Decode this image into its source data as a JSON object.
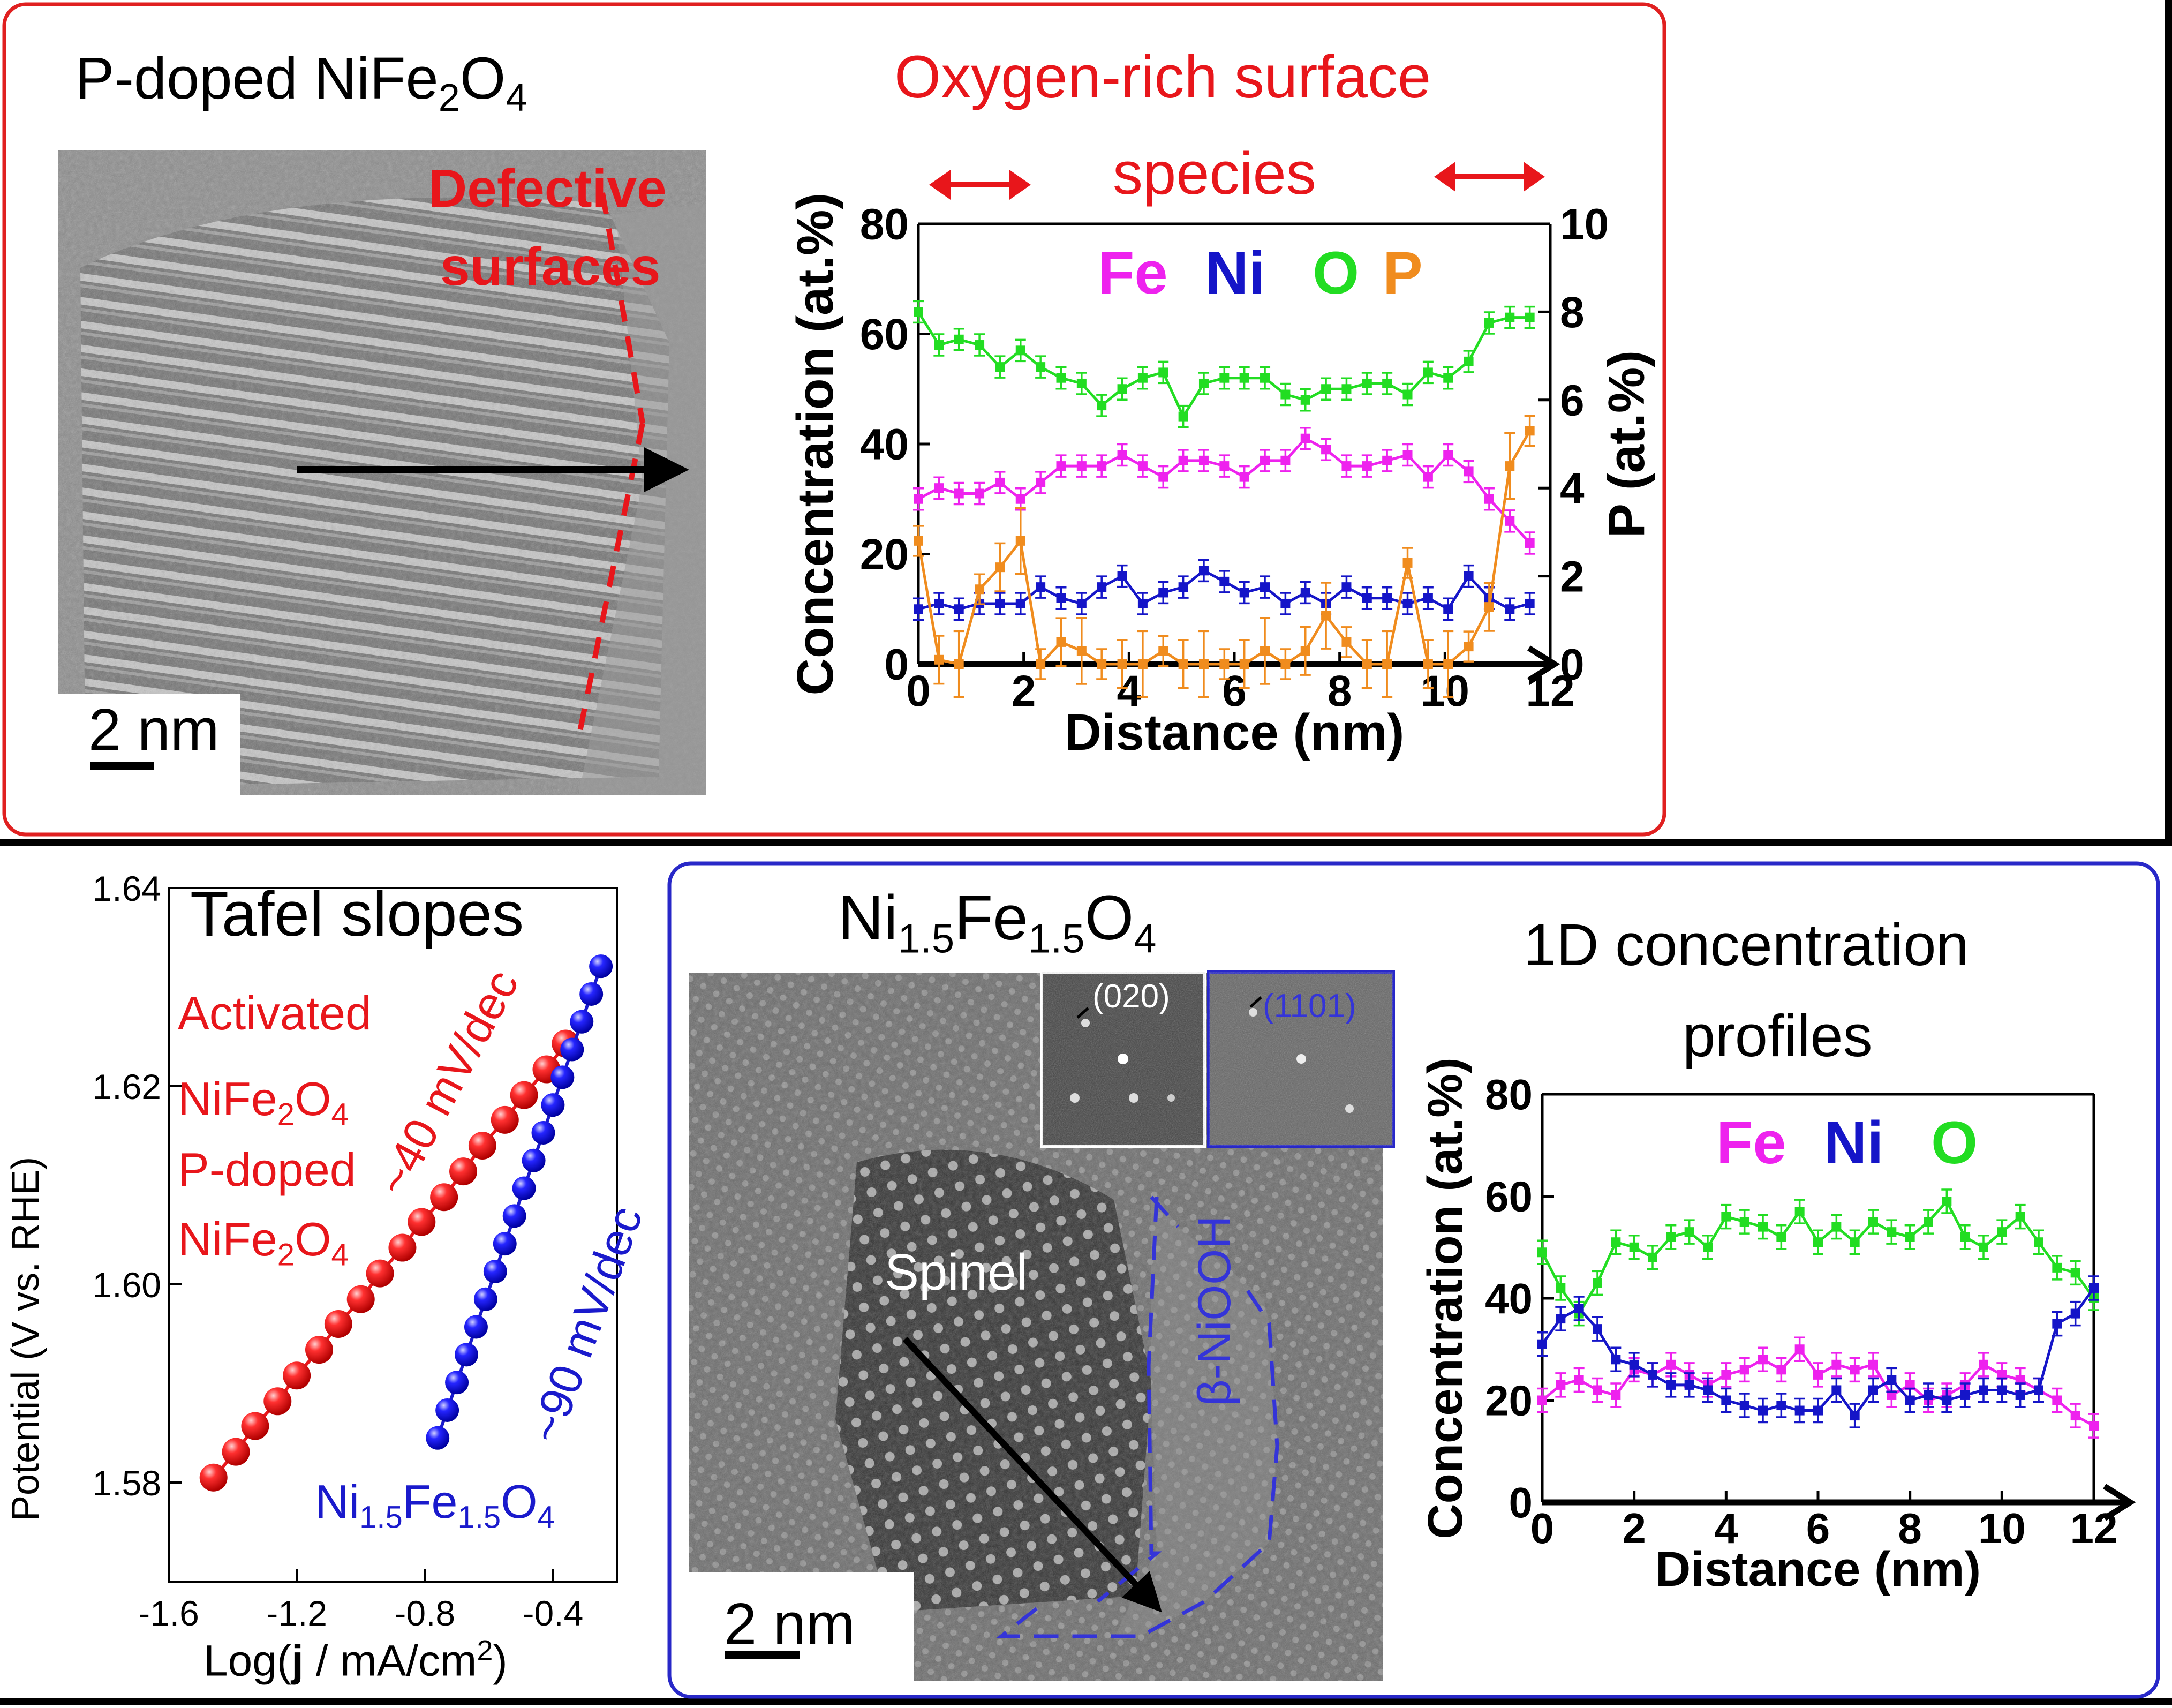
{
  "top_panel": {
    "title": "P-doped NiFe2O4",
    "defect_label": [
      "Defective",
      "surfaces"
    ],
    "scale_bar": "2 nm",
    "annotation": [
      "Oxygen-rich surface",
      "species"
    ]
  },
  "bottom_panel": {
    "tafel_title": "Tafel slopes",
    "tem_title": "Ni1.5Fe1.5O4",
    "profile_title": [
      "1D concentration",
      "profiles"
    ],
    "spinel_label": "Spinel",
    "niooh_label": "β-NiOOH",
    "fft_labels": [
      "(020)",
      "(1101)"
    ],
    "scale_bar": "2 nm"
  },
  "colors": {
    "red": "#e8161b",
    "blue": "#1a1acc",
    "Fe": "#ee22ee",
    "Ni": "#1515c8",
    "O": "#22dd22",
    "P": "#f08c1e",
    "panel_border_red": "#e02020",
    "panel_border_blue": "#2828c8"
  },
  "chart_data": [
    {
      "type": "line",
      "xlabel": "Distance (nm)",
      "ylabel": "Concentration (at.%)",
      "y2label": "P (at.%)",
      "xlim": [
        0,
        12
      ],
      "ylim": [
        0,
        80
      ],
      "y2lim": [
        0,
        10
      ],
      "xticks": [
        "0",
        "2",
        "4",
        "6",
        "8",
        "10",
        "12"
      ],
      "yticks": [
        "0",
        "20",
        "40",
        "60",
        "80"
      ],
      "y2ticks": [
        "0",
        "2",
        "4",
        "6",
        "8",
        "10"
      ],
      "legend": [
        "Fe",
        "Ni",
        "O",
        "P"
      ],
      "x": [
        0,
        0.39,
        0.77,
        1.16,
        1.55,
        1.94,
        2.32,
        2.71,
        3.1,
        3.48,
        3.87,
        4.26,
        4.65,
        5.03,
        5.42,
        5.81,
        6.19,
        6.58,
        6.97,
        7.35,
        7.74,
        8.13,
        8.52,
        8.9,
        9.29,
        9.68,
        10.06,
        10.45,
        10.84,
        11.23,
        11.61
      ],
      "series": [
        {
          "name": "O",
          "axis": "left",
          "values": [
            64,
            58,
            59,
            58,
            54,
            57,
            54,
            52,
            51,
            47,
            50,
            52,
            53,
            45,
            51,
            52,
            52,
            52,
            49,
            48,
            50,
            50,
            51,
            51,
            49,
            53,
            52,
            55,
            62,
            63,
            63
          ]
        },
        {
          "name": "Fe",
          "axis": "left",
          "values": [
            30,
            32,
            31,
            31,
            33,
            30,
            33,
            36,
            36,
            36,
            38,
            36,
            34,
            37,
            37,
            36,
            34,
            37,
            37,
            41,
            39,
            36,
            36,
            37,
            38,
            34,
            38,
            35,
            30,
            26,
            22
          ]
        },
        {
          "name": "Ni",
          "axis": "left",
          "values": [
            10,
            11,
            10,
            11,
            11,
            11,
            14,
            12,
            11,
            14,
            16,
            11,
            13,
            14,
            17,
            15,
            13,
            14,
            11,
            13,
            11,
            14,
            12,
            12,
            11,
            12,
            10,
            16,
            12,
            10,
            11
          ]
        },
        {
          "name": "P",
          "axis": "right",
          "values": [
            2.8,
            0.1,
            0,
            1.7,
            2.2,
            2.8,
            0,
            0.5,
            0.3,
            0,
            0,
            0,
            0.3,
            0,
            0,
            0,
            0,
            0.3,
            0,
            0.3,
            1.1,
            0.5,
            0,
            0,
            2.3,
            0,
            0,
            0.4,
            1.3,
            4.5,
            5.3
          ]
        }
      ]
    },
    {
      "type": "scatter",
      "xlabel": "Log(j / mA/cm2)",
      "ylabel": "Potential (V vs. RHE)",
      "xlim": [
        -1.6,
        -0.2
      ],
      "ylim": [
        1.57,
        1.64
      ],
      "xticks": [
        "-1.6",
        "-1.2",
        "-0.8",
        "-0.4"
      ],
      "yticks": [
        "1.58",
        "1.60",
        "1.62",
        "1.64"
      ],
      "series": [
        {
          "name": "Activated P-doped NiFe2O4",
          "slope_label": "~40 mV/dec",
          "x": [
            -1.46,
            -1.39,
            -1.33,
            -1.26,
            -1.2,
            -1.13,
            -1.07,
            -1.0,
            -0.94,
            -0.87,
            -0.81,
            -0.74,
            -0.68,
            -0.62,
            -0.55,
            -0.49,
            -0.42,
            -0.36
          ],
          "y": [
            1.5805,
            1.5831,
            1.5857,
            1.5882,
            1.5908,
            1.5934,
            1.596,
            1.5985,
            1.6011,
            1.6037,
            1.6063,
            1.6088,
            1.6114,
            1.614,
            1.6166,
            1.6191,
            1.6217,
            1.6243
          ]
        },
        {
          "name": "Ni1.5Fe1.5O4",
          "slope_label": "~90 mV/dec",
          "x": [
            -0.76,
            -0.73,
            -0.7,
            -0.67,
            -0.64,
            -0.61,
            -0.58,
            -0.55,
            -0.52,
            -0.49,
            -0.46,
            -0.43,
            -0.4,
            -0.37,
            -0.34,
            -0.31,
            -0.28,
            -0.25
          ],
          "y": [
            1.5845,
            1.5873,
            1.5901,
            1.5929,
            1.5957,
            1.5985,
            1.6013,
            1.6041,
            1.6069,
            1.6097,
            1.6125,
            1.6153,
            1.6181,
            1.6209,
            1.6237,
            1.6265,
            1.6293,
            1.6321
          ]
        }
      ]
    },
    {
      "type": "line",
      "xlabel": "Distance (nm)",
      "ylabel": "Concentration (at.%)",
      "xlim": [
        0,
        12
      ],
      "ylim": [
        0,
        80
      ],
      "xticks": [
        "0",
        "2",
        "4",
        "6",
        "8",
        "10",
        "12"
      ],
      "yticks": [
        "0",
        "20",
        "40",
        "60",
        "80"
      ],
      "legend": [
        "Fe",
        "Ni",
        "O"
      ],
      "x": [
        0,
        0.4,
        0.8,
        1.2,
        1.6,
        2,
        2.4,
        2.8,
        3.2,
        3.6,
        4,
        4.4,
        4.8,
        5.2,
        5.6,
        6,
        6.4,
        6.8,
        7.2,
        7.6,
        8,
        8.4,
        8.8,
        9.2,
        9.6,
        10,
        10.4,
        10.8,
        11.2,
        11.6,
        12
      ],
      "series": [
        {
          "name": "O",
          "values": [
            49,
            42,
            37,
            43,
            51,
            50,
            48,
            52,
            53,
            50,
            56,
            55,
            54,
            52,
            57,
            51,
            54,
            51,
            55,
            53,
            52,
            55,
            59,
            52,
            50,
            53,
            56,
            51,
            46,
            45,
            40
          ]
        },
        {
          "name": "Fe",
          "values": [
            20,
            23,
            24,
            22,
            21,
            26,
            25,
            27,
            25,
            23,
            25,
            26,
            28,
            26,
            30,
            25,
            27,
            26,
            27,
            21,
            23,
            20,
            21,
            23,
            27,
            25,
            24,
            22,
            20,
            17,
            15
          ]
        },
        {
          "name": "Ni",
          "values": [
            31,
            36,
            38,
            34,
            28,
            27,
            25,
            23,
            23,
            22,
            20,
            19,
            18,
            19,
            18,
            18,
            22,
            17,
            22,
            24,
            20,
            21,
            20,
            21,
            22,
            22,
            21,
            22,
            35,
            37,
            42
          ]
        }
      ]
    }
  ]
}
